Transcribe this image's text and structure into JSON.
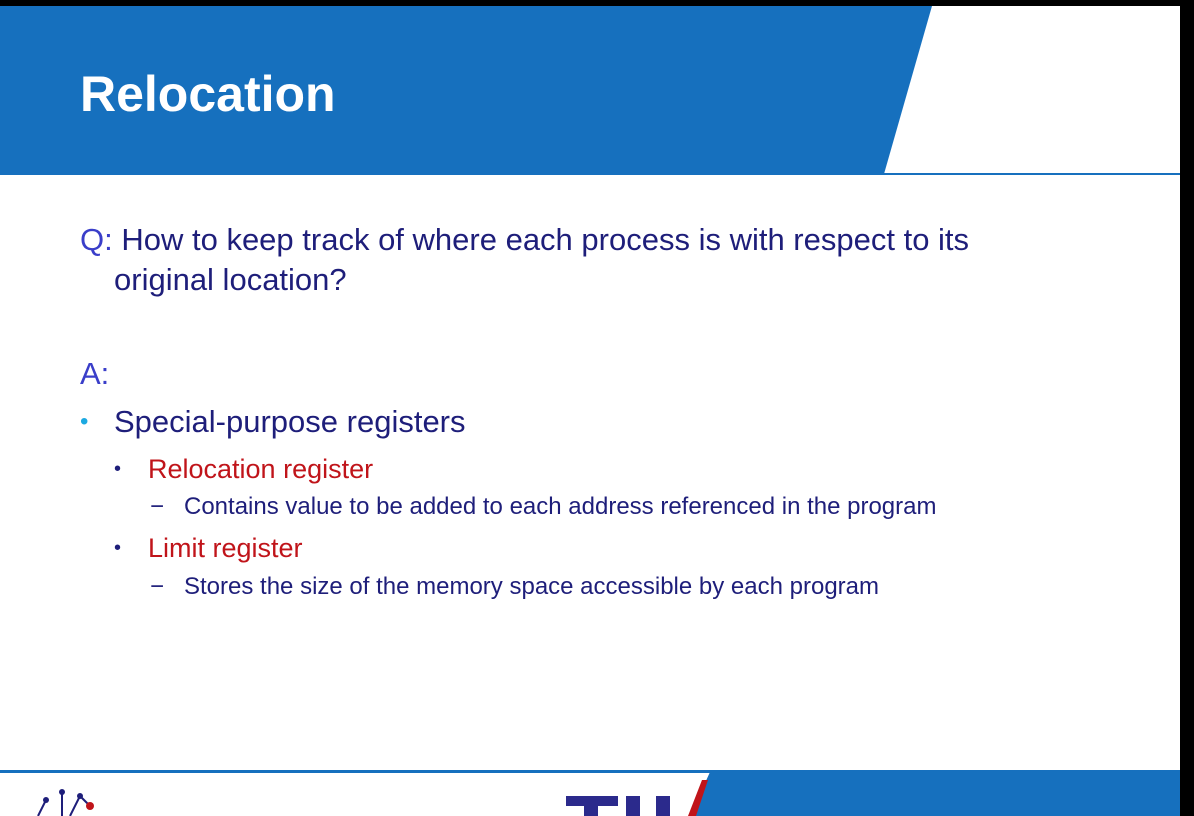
{
  "slide": {
    "title": "Relocation",
    "question": {
      "prefix": "Q:",
      "line1": " How to keep track of where each process is with respect to its",
      "line2": "original location?"
    },
    "answer_label": "A:",
    "points": [
      {
        "text": "Special-purpose registers",
        "subpoints": [
          {
            "text": "Relocation register",
            "detail": "Contains value to be added to each address referenced in the program"
          },
          {
            "text": "Limit register",
            "detail": "Stores the size of the memory space accessible by each program"
          }
        ]
      }
    ]
  },
  "colors": {
    "header_blue": "#1670be",
    "body_text": "#1e1e7a",
    "highlight_red": "#c0141a",
    "bullet_cyan": "#1ca9e1"
  }
}
